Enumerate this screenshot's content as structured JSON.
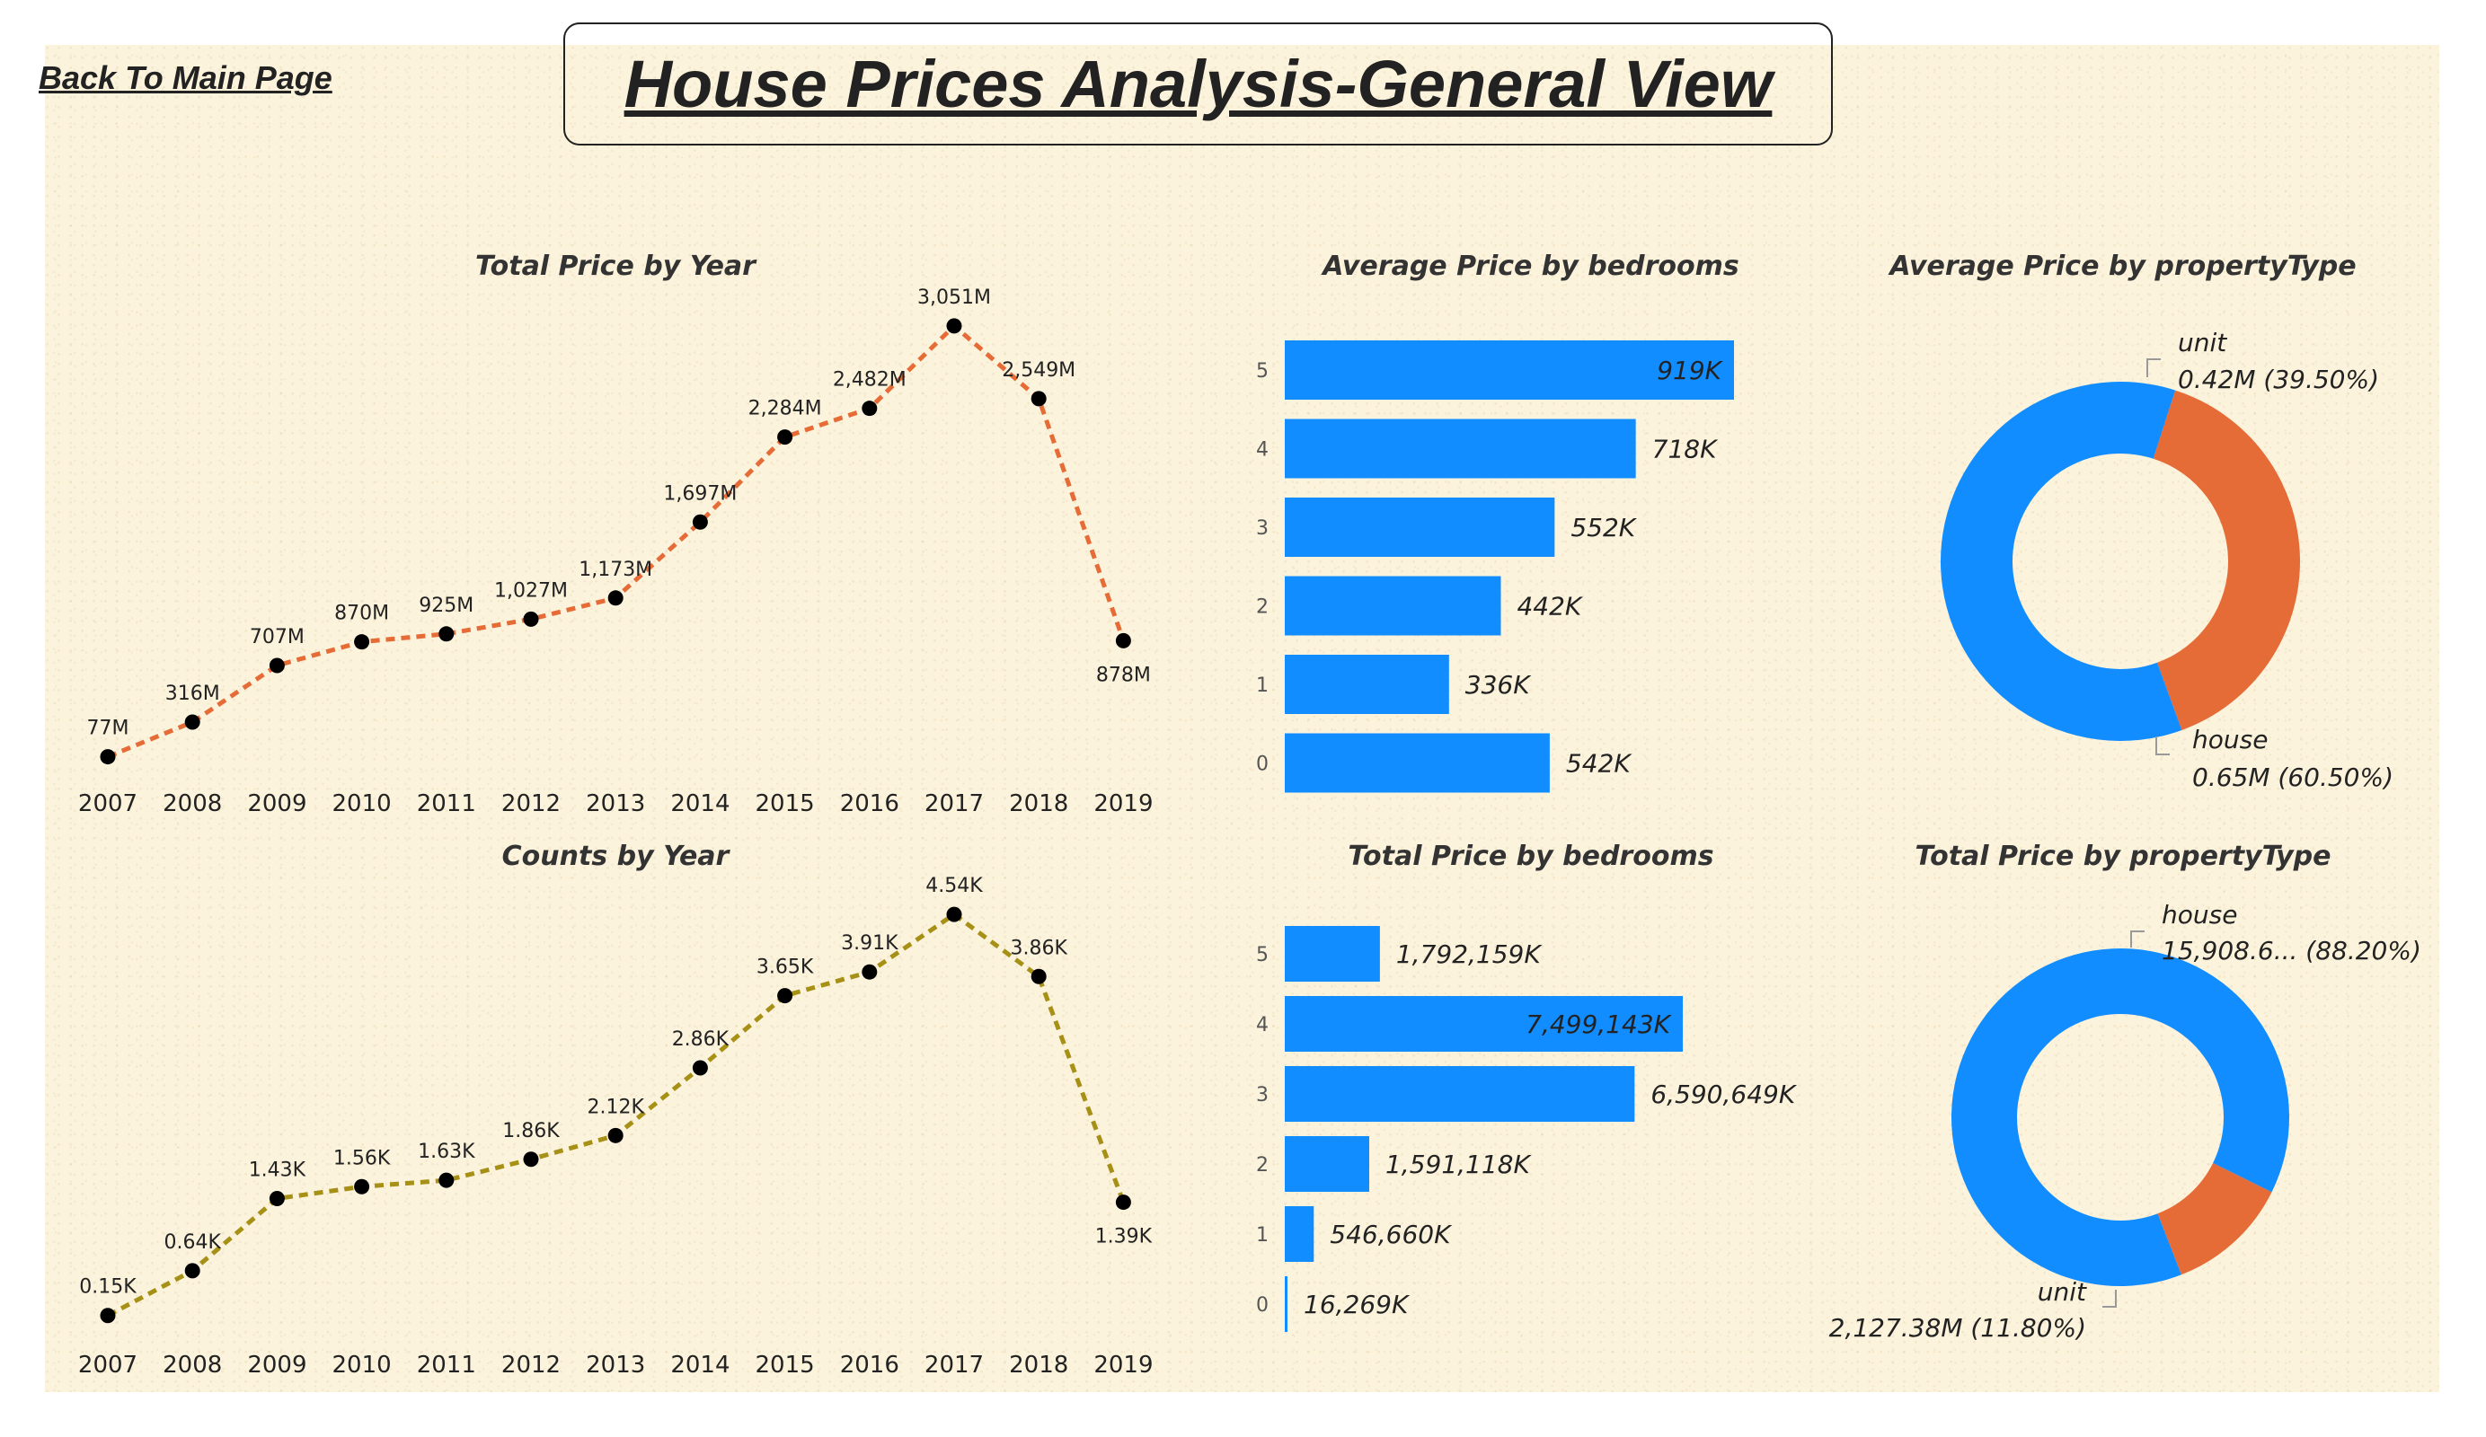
{
  "header": {
    "back_link": "Back To Main Page",
    "title": "House Prices Analysis-General View"
  },
  "colors": {
    "background": "#fcf3dc",
    "blue": "#118dff",
    "orange": "#e66c37",
    "olive": "#a69016",
    "marker": "#000000"
  },
  "chart_data": [
    {
      "id": "total-price-by-year",
      "type": "line",
      "title": "Total Price by Year",
      "line_color": "#e66c37",
      "line_style": "dashed",
      "x": [
        "2007",
        "2008",
        "2009",
        "2010",
        "2011",
        "2012",
        "2013",
        "2014",
        "2015",
        "2016",
        "2017",
        "2018",
        "2019"
      ],
      "values": [
        77,
        316,
        707,
        870,
        925,
        1027,
        1173,
        1697,
        2284,
        2482,
        3051,
        2549,
        878
      ],
      "labels": [
        "77M",
        "316M",
        "707M",
        "870M",
        "925M",
        "1,027M",
        "1,173M",
        "1,697M",
        "2,284M",
        "2,482M",
        "3,051M",
        "2,549M",
        "878M"
      ],
      "unit": "M",
      "ylim": [
        0,
        3100
      ]
    },
    {
      "id": "counts-by-year",
      "type": "line",
      "title": "Counts by Year",
      "line_color": "#a69016",
      "line_style": "dashed",
      "x": [
        "2007",
        "2008",
        "2009",
        "2010",
        "2011",
        "2012",
        "2013",
        "2014",
        "2015",
        "2016",
        "2017",
        "2018",
        "2019"
      ],
      "values": [
        0.15,
        0.64,
        1.43,
        1.56,
        1.63,
        1.86,
        2.12,
        2.86,
        3.65,
        3.91,
        4.54,
        3.86,
        1.39
      ],
      "labels": [
        "0.15K",
        "0.64K",
        "1.43K",
        "1.56K",
        "1.63K",
        "1.86K",
        "2.12K",
        "2.86K",
        "3.65K",
        "3.91K",
        "4.54K",
        "3.86K",
        "1.39K"
      ],
      "unit": "K",
      "ylim": [
        0,
        4.6
      ]
    },
    {
      "id": "average-price-by-bedrooms",
      "type": "bar",
      "orientation": "horizontal",
      "title": "Average Price by bedrooms",
      "bar_color": "#118dff",
      "categories": [
        "5",
        "4",
        "3",
        "2",
        "1",
        "0"
      ],
      "values": [
        919,
        718,
        552,
        442,
        336,
        542
      ],
      "labels": [
        "919K",
        "718K",
        "552K",
        "442K",
        "336K",
        "542K"
      ],
      "unit": "K"
    },
    {
      "id": "total-price-by-bedrooms",
      "type": "bar",
      "orientation": "horizontal",
      "title": "Total Price by bedrooms",
      "bar_color": "#118dff",
      "categories": [
        "5",
        "4",
        "3",
        "2",
        "1",
        "0"
      ],
      "values": [
        1792159,
        7499143,
        6590649,
        1591118,
        546660,
        16269
      ],
      "labels": [
        "1,792,159K",
        "7,499,143K",
        "6,590,649K",
        "1,591,118K",
        "546,660K",
        "16,269K"
      ],
      "unit": "K"
    },
    {
      "id": "average-price-by-propertytype",
      "type": "pie",
      "variant": "donut",
      "title": "Average Price by propertyType",
      "slices": [
        {
          "name": "unit",
          "value": 0.42,
          "percent": 39.5,
          "value_label": "0.42M (39.50%)",
          "color": "#e66c37"
        },
        {
          "name": "house",
          "value": 0.65,
          "percent": 60.5,
          "value_label": "0.65M (60.50%)",
          "color": "#118dff"
        }
      ]
    },
    {
      "id": "total-price-by-propertytype",
      "type": "pie",
      "variant": "donut",
      "title": "Total Price by propertyType",
      "slices": [
        {
          "name": "house",
          "percent": 88.2,
          "value_label": "15,908.6... (88.20%)",
          "color": "#118dff"
        },
        {
          "name": "unit",
          "value": 2127.38,
          "percent": 11.8,
          "value_label": "2,127.38M (11.80%)",
          "color": "#e66c37"
        }
      ]
    }
  ]
}
